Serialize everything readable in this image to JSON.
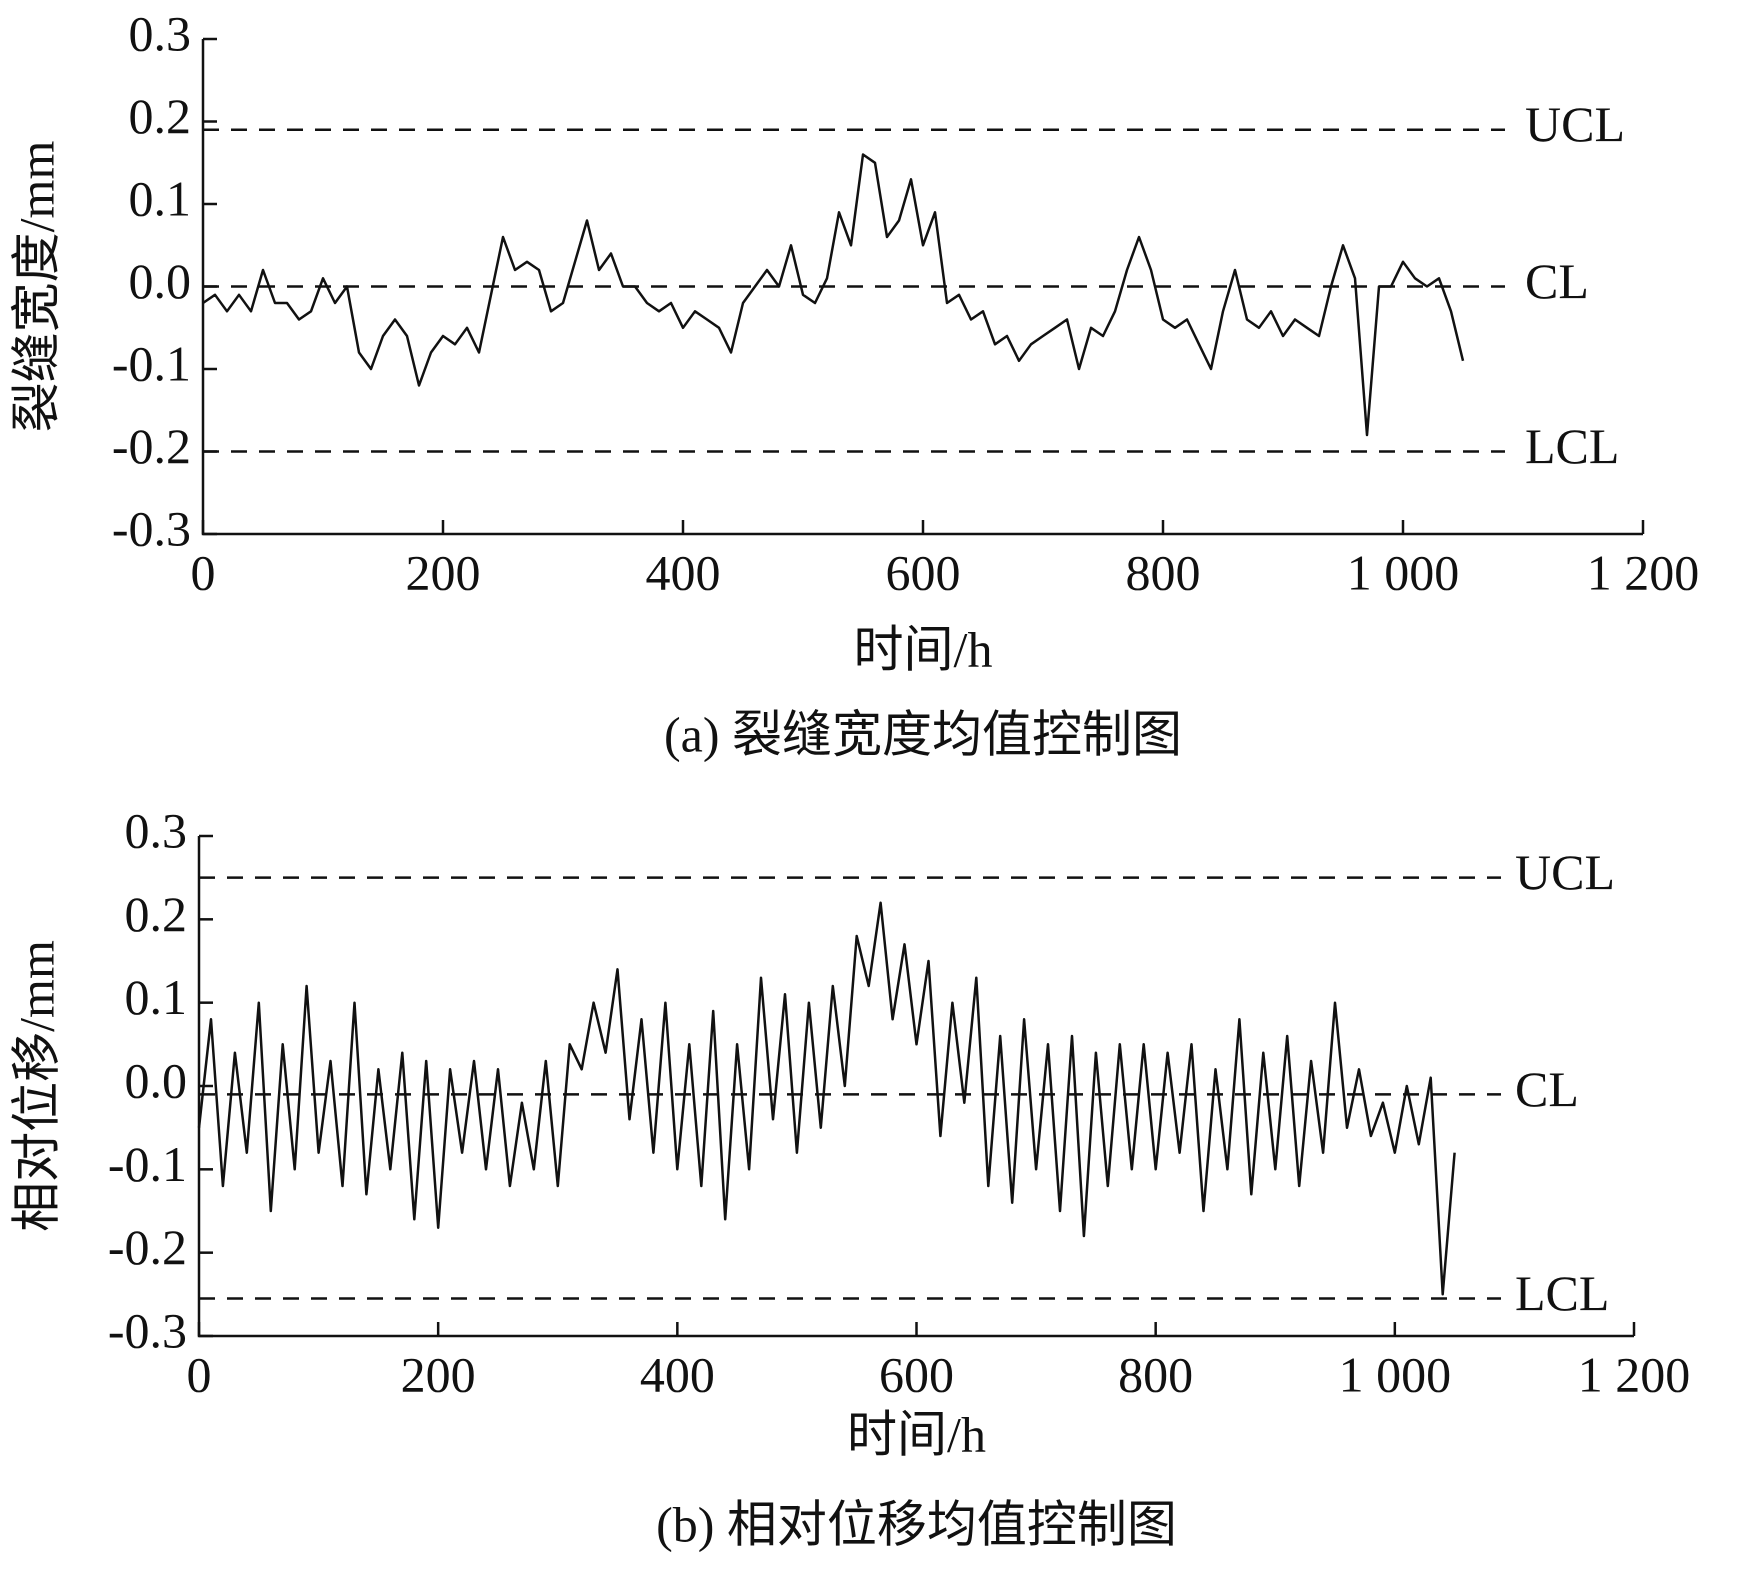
{
  "chart_data": [
    {
      "type": "line",
      "ylabel": "裂缝宽度/mm",
      "xlabel": "时间/h",
      "caption": "(a) 裂缝宽度均值控制图",
      "xlim": [
        0,
        1200
      ],
      "xticks": [
        0,
        200,
        400,
        600,
        800,
        {
          "value": 1000,
          "label": "1 000"
        },
        {
          "value": 1200,
          "label": "1 200"
        }
      ],
      "ylim": [
        -0.3,
        0.3
      ],
      "yticks": [
        -0.3,
        -0.2,
        -0.1,
        {
          "value": 0,
          "label": "0.0"
        },
        0.1,
        0.2,
        0.3
      ],
      "control_lines": [
        {
          "label": "UCL",
          "value": 0.19
        },
        {
          "label": "CL",
          "value": 0
        },
        {
          "label": "LCL",
          "value": -0.2
        }
      ],
      "x": [
        0,
        10,
        20,
        30,
        40,
        50,
        60,
        70,
        80,
        90,
        100,
        110,
        120,
        130,
        140,
        150,
        160,
        170,
        180,
        190,
        200,
        210,
        220,
        230,
        240,
        250,
        260,
        270,
        280,
        290,
        300,
        310,
        320,
        330,
        340,
        350,
        360,
        370,
        380,
        390,
        400,
        410,
        420,
        430,
        440,
        450,
        460,
        470,
        480,
        490,
        500,
        510,
        520,
        530,
        540,
        550,
        560,
        570,
        580,
        590,
        600,
        610,
        620,
        630,
        640,
        650,
        660,
        670,
        680,
        690,
        700,
        710,
        720,
        730,
        740,
        750,
        760,
        770,
        780,
        790,
        800,
        810,
        820,
        830,
        840,
        850,
        860,
        870,
        880,
        890,
        900,
        910,
        920,
        930,
        940,
        950,
        960,
        970,
        980,
        990,
        1000,
        1010,
        1020,
        1030,
        1040,
        1050
      ],
      "series": [
        {
          "color": "#111111",
          "values": [
            -0.02,
            -0.01,
            -0.03,
            -0.01,
            -0.03,
            0.02,
            -0.02,
            -0.02,
            -0.04,
            -0.03,
            0.01,
            -0.02,
            0.0,
            -0.08,
            -0.1,
            -0.06,
            -0.04,
            -0.06,
            -0.12,
            -0.08,
            -0.06,
            -0.07,
            -0.05,
            -0.08,
            -0.01,
            0.06,
            0.02,
            0.03,
            0.02,
            -0.03,
            -0.02,
            0.03,
            0.08,
            0.02,
            0.04,
            0.0,
            0.0,
            -0.02,
            -0.03,
            -0.02,
            -0.05,
            -0.03,
            -0.04,
            -0.05,
            -0.08,
            -0.02,
            0.0,
            0.02,
            0.0,
            0.05,
            -0.01,
            -0.02,
            0.01,
            0.09,
            0.05,
            0.16,
            0.15,
            0.06,
            0.08,
            0.13,
            0.05,
            0.09,
            -0.02,
            -0.01,
            -0.04,
            -0.03,
            -0.07,
            -0.06,
            -0.09,
            -0.07,
            -0.06,
            -0.05,
            -0.04,
            -0.1,
            -0.05,
            -0.06,
            -0.03,
            0.02,
            0.06,
            0.02,
            -0.04,
            -0.05,
            -0.04,
            -0.07,
            -0.1,
            -0.03,
            0.02,
            -0.04,
            -0.05,
            -0.03,
            -0.06,
            -0.04,
            -0.05,
            -0.06,
            0.0,
            0.05,
            0.01,
            -0.18,
            0.0,
            0.0,
            0.03,
            0.01,
            0.0,
            0.01,
            -0.03,
            -0.09
          ]
        }
      ]
    },
    {
      "type": "line",
      "ylabel": "相对位移/mm",
      "xlabel": "时间/h",
      "caption": "(b) 相对位移均值控制图",
      "xlim": [
        0,
        1200
      ],
      "xticks": [
        0,
        200,
        400,
        600,
        800,
        {
          "value": 1000,
          "label": "1 000"
        },
        {
          "value": 1200,
          "label": "1 200"
        }
      ],
      "ylim": [
        -0.3,
        0.3
      ],
      "yticks": [
        -0.3,
        -0.2,
        -0.1,
        {
          "value": 0,
          "label": "0.0"
        },
        0.1,
        0.2,
        0.3
      ],
      "control_lines": [
        {
          "label": "UCL",
          "value": 0.25
        },
        {
          "label": "CL",
          "value": -0.01
        },
        {
          "label": "LCL",
          "value": -0.255
        }
      ],
      "x": [
        0,
        10,
        20,
        30,
        40,
        50,
        60,
        70,
        80,
        90,
        100,
        110,
        120,
        130,
        140,
        150,
        160,
        170,
        180,
        190,
        200,
        210,
        220,
        230,
        240,
        250,
        260,
        270,
        280,
        290,
        300,
        310,
        320,
        330,
        340,
        350,
        360,
        370,
        380,
        390,
        400,
        410,
        420,
        430,
        440,
        450,
        460,
        470,
        480,
        490,
        500,
        510,
        520,
        530,
        540,
        550,
        560,
        570,
        580,
        590,
        600,
        610,
        620,
        630,
        640,
        650,
        660,
        670,
        680,
        690,
        700,
        710,
        720,
        730,
        740,
        750,
        760,
        770,
        780,
        790,
        800,
        810,
        820,
        830,
        840,
        850,
        860,
        870,
        880,
        890,
        900,
        910,
        920,
        930,
        940,
        950,
        960,
        970,
        980,
        990,
        1000,
        1010,
        1020,
        1030,
        1040,
        1050
      ],
      "series": [
        {
          "color": "#111111",
          "values": [
            -0.05,
            0.08,
            -0.12,
            0.04,
            -0.08,
            0.1,
            -0.15,
            0.05,
            -0.1,
            0.12,
            -0.08,
            0.03,
            -0.12,
            0.1,
            -0.13,
            0.02,
            -0.1,
            0.04,
            -0.16,
            0.03,
            -0.17,
            0.02,
            -0.08,
            0.03,
            -0.1,
            0.02,
            -0.12,
            -0.02,
            -0.1,
            0.03,
            -0.12,
            0.05,
            0.02,
            0.1,
            0.04,
            0.14,
            -0.04,
            0.08,
            -0.08,
            0.1,
            -0.1,
            0.05,
            -0.12,
            0.09,
            -0.16,
            0.05,
            -0.1,
            0.13,
            -0.04,
            0.11,
            -0.08,
            0.1,
            -0.05,
            0.12,
            0.0,
            0.18,
            0.12,
            0.22,
            0.08,
            0.17,
            0.05,
            0.15,
            -0.06,
            0.1,
            -0.02,
            0.13,
            -0.12,
            0.06,
            -0.14,
            0.08,
            -0.1,
            0.05,
            -0.15,
            0.06,
            -0.18,
            0.04,
            -0.12,
            0.05,
            -0.1,
            0.05,
            -0.1,
            0.04,
            -0.08,
            0.05,
            -0.15,
            0.02,
            -0.1,
            0.08,
            -0.13,
            0.04,
            -0.1,
            0.06,
            -0.12,
            0.03,
            -0.08,
            0.1,
            -0.05,
            0.02,
            -0.06,
            -0.02,
            -0.08,
            0.0,
            -0.07,
            0.01,
            -0.25,
            -0.08
          ]
        }
      ]
    }
  ]
}
